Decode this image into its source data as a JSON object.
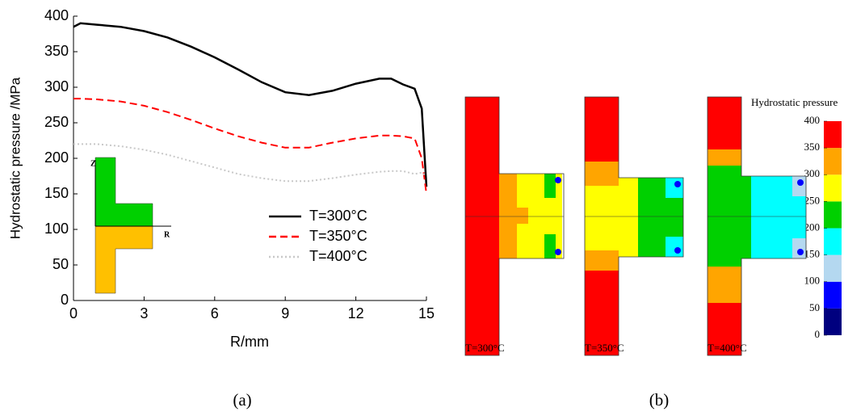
{
  "chart_data": [
    {
      "type": "line",
      "caption": "(a)",
      "xlabel": "R/mm",
      "ylabel": "Hydrostatic pressure /MPa",
      "x": [
        0,
        0.3,
        1,
        2,
        3,
        4,
        5,
        6,
        7,
        8,
        9,
        10,
        11,
        12,
        13,
        13.5,
        14,
        14.5,
        14.8,
        15
      ],
      "series": [
        {
          "name": "T=300°C",
          "color": "#000000",
          "dash": "solid",
          "values": [
            385,
            390,
            388,
            385,
            379,
            370,
            357,
            342,
            325,
            307,
            293,
            289,
            295,
            305,
            312,
            312,
            304,
            298,
            270,
            160
          ]
        },
        {
          "name": "T=350°C",
          "color": "#ff0000",
          "dash": "dashed",
          "values": [
            284,
            284,
            283,
            280,
            274,
            265,
            254,
            242,
            231,
            222,
            215,
            215,
            222,
            228,
            232,
            232,
            231,
            228,
            200,
            150
          ]
        },
        {
          "name": "T=400°C",
          "color": "#c8c8c8",
          "dash": "dotted",
          "values": [
            220,
            220,
            220,
            217,
            212,
            205,
            196,
            187,
            178,
            172,
            168,
            168,
            172,
            177,
            181,
            182,
            182,
            178,
            180,
            175
          ]
        }
      ],
      "xlim": [
        0,
        15
      ],
      "xticks": [
        0,
        3,
        6,
        9,
        12,
        15
      ],
      "ylim": [
        0,
        400
      ],
      "yticks": [
        0,
        50,
        100,
        150,
        200,
        250,
        300,
        350,
        400
      ],
      "grid": false,
      "legend": "center right",
      "inset": {
        "z_label": "Z",
        "r_label": "R"
      }
    },
    {
      "type": "contour",
      "caption": "(b)",
      "title": "Hydrostatic pressure",
      "panels": [
        "T=300°C",
        "T=350°C",
        "T=400°C"
      ],
      "colorbar_ticks": [
        0,
        50,
        100,
        150,
        200,
        250,
        300,
        350,
        400
      ],
      "colorbar_colors": [
        "#00007f",
        "#0000ff",
        "#b4d8f0",
        "#00ffff",
        "#00d000",
        "#ffff00",
        "#ffa500",
        "#ff0000"
      ]
    }
  ]
}
